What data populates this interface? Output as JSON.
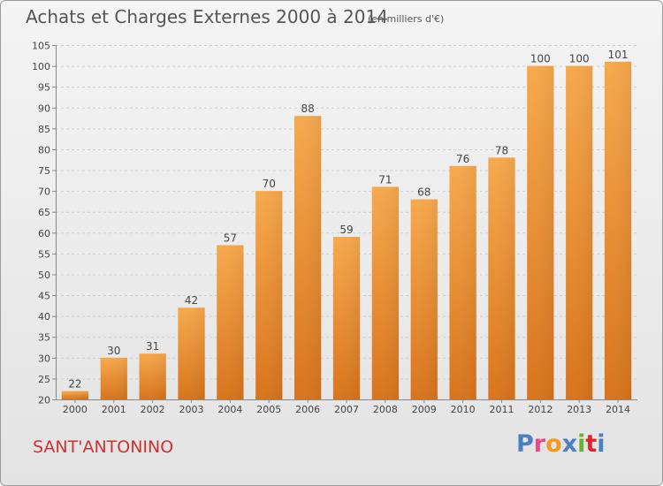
{
  "header": {
    "title": "Achats et Charges Externes 2000 à 2014",
    "subtitle": "(en milliers d'€)"
  },
  "footer": {
    "commune": "SANT'ANTONINO",
    "logo": "Proxiti",
    "logo_colors": [
      "#4a7fc1",
      "#e14c8c",
      "#f39a1f",
      "#4a7fc1",
      "#66b32e",
      "#e3262d",
      "#4a7fc1"
    ]
  },
  "colors": {
    "bar_light": "#f7a94d",
    "bar_dark": "#d9741c",
    "grid": "#cfcfcf",
    "axis_text": "#444444"
  },
  "chart_data": {
    "type": "bar",
    "categories": [
      "2000",
      "2001",
      "2002",
      "2003",
      "2004",
      "2005",
      "2006",
      "2007",
      "2008",
      "2009",
      "2010",
      "2011",
      "2012",
      "2013",
      "2014"
    ],
    "values": [
      22,
      30,
      31,
      42,
      57,
      70,
      88,
      59,
      71,
      68,
      76,
      78,
      100,
      100,
      101
    ],
    "labels": [
      "22",
      "30",
      "31",
      "42",
      "57",
      "70",
      "88",
      "59",
      "71",
      "68",
      "76",
      "78",
      "100",
      "100",
      "101"
    ],
    "ylim": [
      20,
      105
    ],
    "yticks": [
      20,
      25,
      30,
      35,
      40,
      45,
      50,
      55,
      60,
      65,
      70,
      75,
      80,
      85,
      90,
      95,
      100,
      105
    ],
    "grid": true,
    "legend": "none"
  }
}
